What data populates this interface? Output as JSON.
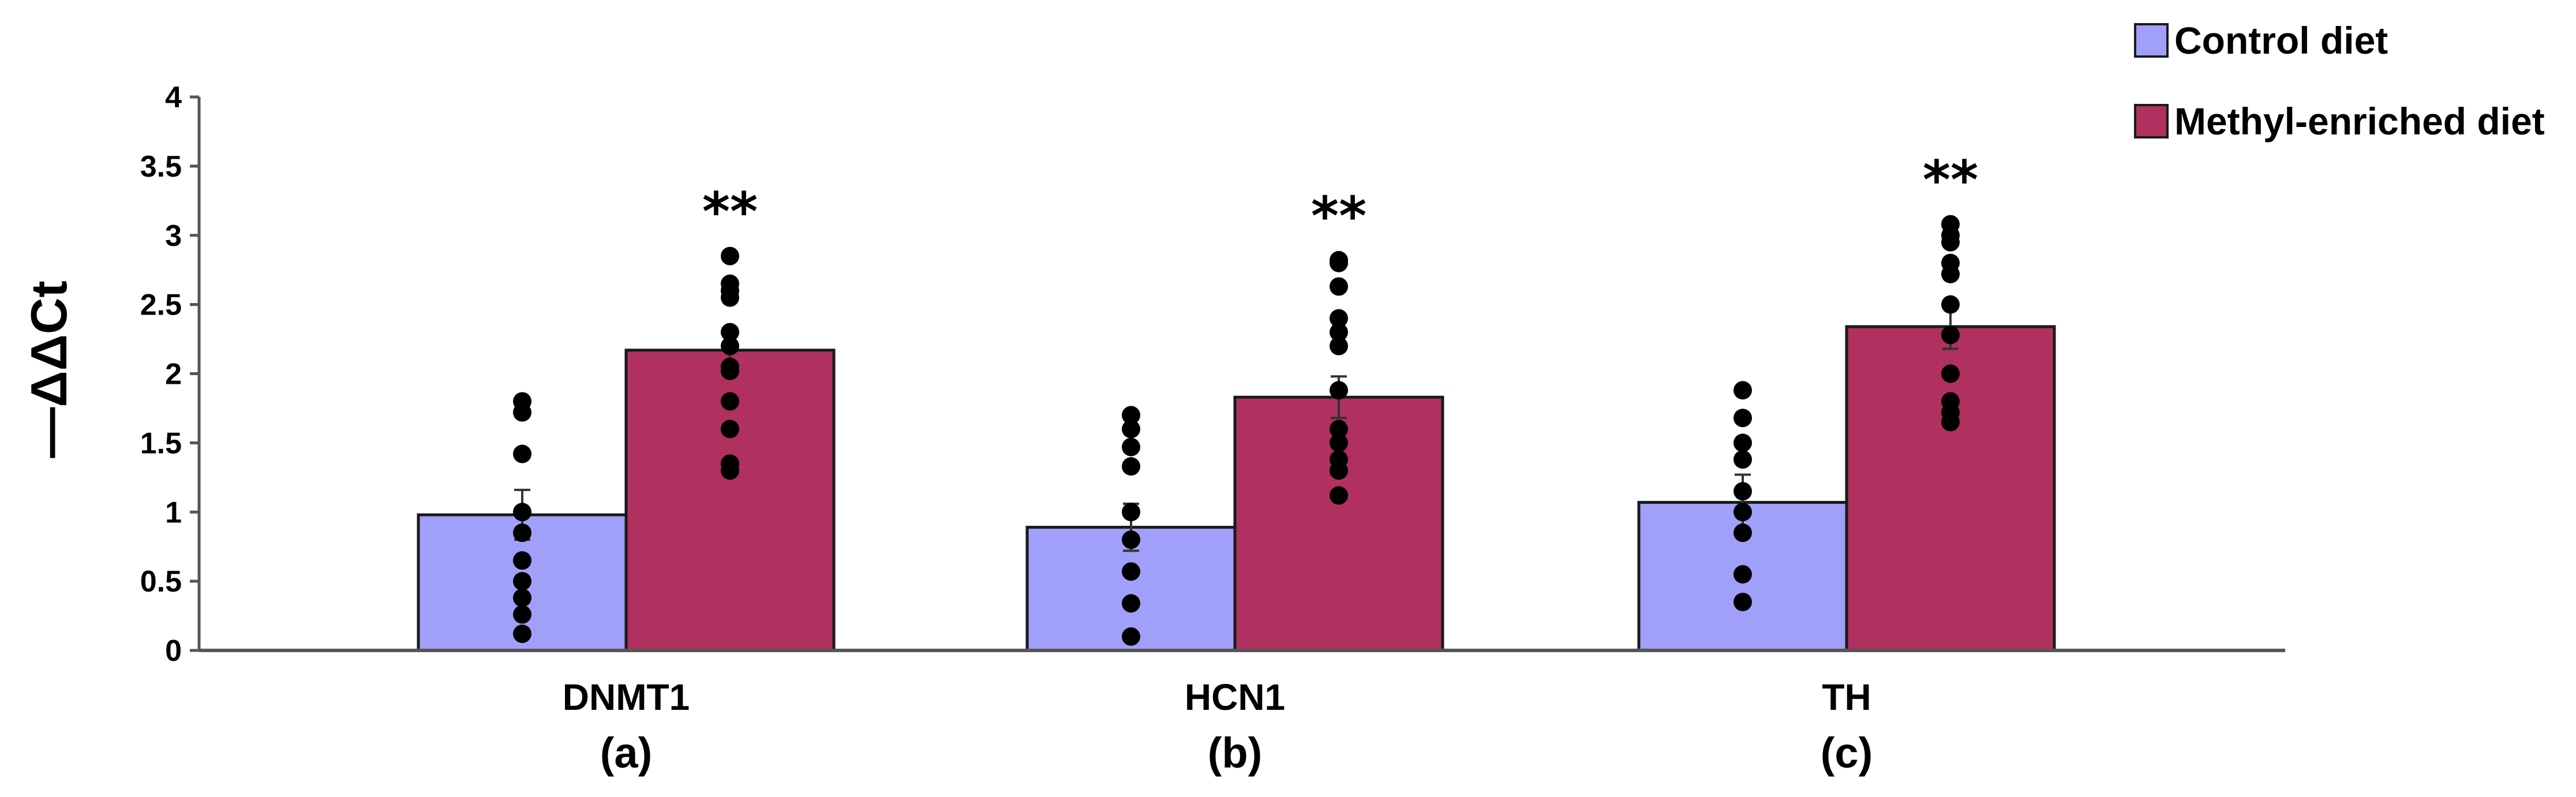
{
  "chart_data": {
    "type": "bar",
    "title": "",
    "xlabel": "",
    "ylabel": "—ΔΔCt",
    "ylim": [
      0,
      4
    ],
    "yticks": [
      "0",
      "0.5",
      "1",
      "1.5",
      "2",
      "2.5",
      "3",
      "3.5",
      "4"
    ],
    "grid": false,
    "legend_position": "top-right",
    "categories": [
      "DNMT1",
      "HCN1",
      "TH"
    ],
    "sublabels": [
      "(a)",
      "(b)",
      "(c)"
    ],
    "series": [
      {
        "name": "Control diet",
        "color": "#a0a0fa",
        "values": [
          0.98,
          0.89,
          1.07
        ],
        "errors": [
          0.18,
          0.17,
          0.2
        ],
        "points": [
          [
            1.8,
            1.72,
            1.42,
            1.0,
            0.85,
            0.65,
            0.5,
            0.38,
            0.26,
            0.12
          ],
          [
            1.7,
            1.6,
            1.47,
            1.33,
            1.0,
            0.8,
            0.57,
            0.34,
            0.1
          ],
          [
            1.88,
            1.68,
            1.5,
            1.38,
            1.15,
            1.0,
            0.85,
            0.55,
            0.35
          ]
        ]
      },
      {
        "name": "Methyl-enriched diet",
        "color": "#b0305f",
        "values": [
          2.17,
          1.83,
          2.34
        ],
        "errors": [
          0.16,
          0.15,
          0.16
        ],
        "points": [
          [
            2.85,
            2.65,
            2.6,
            2.55,
            2.3,
            2.2,
            2.05,
            2.02,
            1.8,
            1.6,
            1.35,
            1.3
          ],
          [
            2.82,
            2.8,
            2.63,
            2.4,
            2.3,
            2.2,
            1.88,
            1.6,
            1.5,
            1.38,
            1.3,
            1.12
          ],
          [
            3.08,
            3.0,
            2.95,
            2.8,
            2.72,
            2.5,
            2.28,
            2.0,
            1.8,
            1.72,
            1.65
          ]
        ]
      }
    ],
    "annotations": [
      "**",
      "**",
      "**"
    ]
  }
}
